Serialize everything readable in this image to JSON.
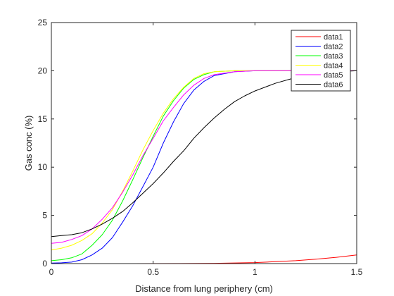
{
  "chart_data": {
    "type": "line",
    "title": "",
    "xlabel": "Distance from lung periphery (cm)",
    "ylabel": "Gas conc (%)",
    "xlim": [
      0,
      1.5
    ],
    "ylim": [
      0,
      25
    ],
    "xticks": [
      0,
      0.5,
      1,
      1.5
    ],
    "xtick_labels": [
      "0",
      "0.5",
      "1",
      "1.5"
    ],
    "yticks": [
      0,
      5,
      10,
      15,
      20,
      25
    ],
    "ytick_labels": [
      "0",
      "5",
      "10",
      "15",
      "20",
      "25"
    ],
    "grid": false,
    "legend_position": "top-right",
    "series": [
      {
        "name": "data1",
        "color": "#ff0000",
        "x": [
          0,
          0.2,
          0.4,
          0.6,
          0.8,
          1.0,
          1.1,
          1.2,
          1.3,
          1.4,
          1.5
        ],
        "y": [
          0,
          0,
          0,
          0.01,
          0.03,
          0.1,
          0.2,
          0.3,
          0.45,
          0.65,
          0.9
        ]
      },
      {
        "name": "data2",
        "color": "#0000ff",
        "x": [
          0,
          0.05,
          0.1,
          0.15,
          0.2,
          0.25,
          0.3,
          0.35,
          0.4,
          0.45,
          0.5,
          0.55,
          0.6,
          0.65,
          0.7,
          0.75,
          0.8,
          0.9,
          1.0,
          1.1,
          1.2,
          1.3,
          1.4,
          1.5
        ],
        "y": [
          0.05,
          0.08,
          0.15,
          0.4,
          0.9,
          1.6,
          2.7,
          4.3,
          6.0,
          8.0,
          10.0,
          12.5,
          14.7,
          16.6,
          18.0,
          18.9,
          19.5,
          19.9,
          20.0,
          20.0,
          20.0,
          20.0,
          20.0,
          20.0
        ]
      },
      {
        "name": "data3",
        "color": "#00ff00",
        "x": [
          0,
          0.05,
          0.1,
          0.15,
          0.2,
          0.25,
          0.3,
          0.35,
          0.4,
          0.45,
          0.5,
          0.55,
          0.6,
          0.65,
          0.7,
          0.75,
          0.8,
          0.9,
          1.0,
          1.1,
          1.2,
          1.3,
          1.4,
          1.5
        ],
        "y": [
          0.3,
          0.4,
          0.6,
          1.0,
          1.9,
          3.0,
          4.5,
          6.5,
          8.7,
          11.0,
          13.2,
          15.3,
          16.9,
          18.2,
          19.1,
          19.6,
          19.9,
          20.0,
          20.0,
          20.0,
          20.0,
          20.0,
          20.0,
          20.0
        ]
      },
      {
        "name": "data4",
        "color": "#ffff00",
        "x": [
          0,
          0.05,
          0.1,
          0.15,
          0.2,
          0.25,
          0.3,
          0.35,
          0.4,
          0.45,
          0.5,
          0.55,
          0.6,
          0.65,
          0.7,
          0.75,
          0.8,
          0.9,
          1.0,
          1.1,
          1.2,
          1.3,
          1.4,
          1.5
        ],
        "y": [
          1.4,
          1.6,
          1.9,
          2.4,
          3.1,
          4.2,
          5.6,
          7.5,
          9.6,
          11.8,
          13.8,
          15.6,
          17.1,
          18.3,
          19.2,
          19.7,
          19.9,
          20.0,
          20.0,
          20.0,
          20.0,
          20.0,
          20.0,
          20.0
        ]
      },
      {
        "name": "data5",
        "color": "#ff00ff",
        "x": [
          0,
          0.05,
          0.1,
          0.15,
          0.2,
          0.25,
          0.3,
          0.35,
          0.4,
          0.45,
          0.5,
          0.55,
          0.6,
          0.65,
          0.7,
          0.75,
          0.8,
          0.9,
          1.0,
          1.1,
          1.2,
          1.3,
          1.4,
          1.5
        ],
        "y": [
          2.1,
          2.2,
          2.5,
          2.9,
          3.6,
          4.6,
          5.8,
          7.4,
          9.2,
          11.2,
          13.0,
          14.8,
          16.2,
          17.5,
          18.5,
          19.2,
          19.6,
          19.9,
          20.0,
          20.0,
          20.0,
          20.0,
          20.0,
          20.0
        ]
      },
      {
        "name": "data6",
        "color": "#000000",
        "x": [
          0,
          0.05,
          0.1,
          0.15,
          0.2,
          0.25,
          0.3,
          0.35,
          0.4,
          0.45,
          0.5,
          0.55,
          0.6,
          0.65,
          0.7,
          0.75,
          0.8,
          0.85,
          0.9,
          0.95,
          1.0,
          1.1,
          1.2,
          1.3,
          1.4,
          1.5
        ],
        "y": [
          2.8,
          2.9,
          3.0,
          3.2,
          3.6,
          4.1,
          4.7,
          5.4,
          6.3,
          7.3,
          8.3,
          9.4,
          10.6,
          11.7,
          13.0,
          14.1,
          15.1,
          16.0,
          16.8,
          17.4,
          17.9,
          18.7,
          19.3,
          19.7,
          19.9,
          20.0
        ]
      }
    ]
  }
}
